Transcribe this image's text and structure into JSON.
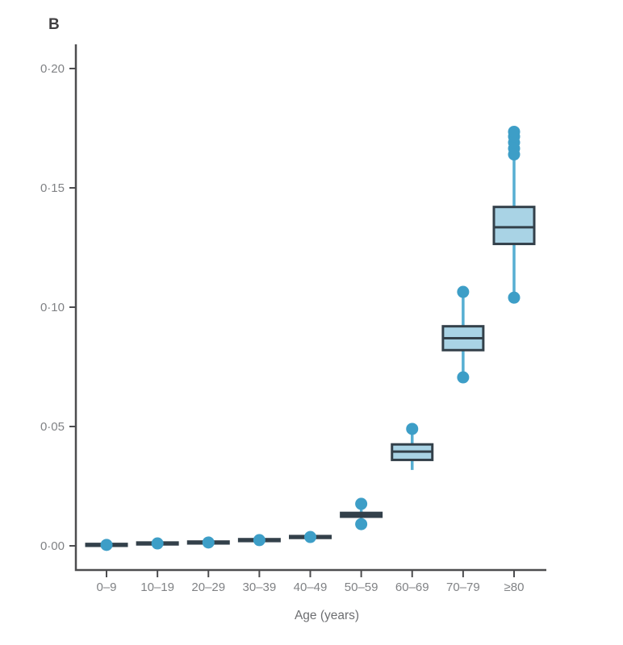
{
  "panel_label": "B",
  "chart_data": {
    "type": "box",
    "title": "",
    "xlabel": "Age (years)",
    "ylabel": "",
    "ylim": [
      0,
      0.21
    ],
    "grid": false,
    "legend": null,
    "categories": [
      "0–9",
      "10–19",
      "20–29",
      "30–39",
      "40–49",
      "50–59",
      "60–69",
      "70–79",
      "≥80"
    ],
    "yticks": [
      {
        "value": 0.0,
        "label": "0·00"
      },
      {
        "value": 0.05,
        "label": "0·05"
      },
      {
        "value": 0.1,
        "label": "0·10"
      },
      {
        "value": 0.15,
        "label": "0·15"
      },
      {
        "value": 0.2,
        "label": "0·20"
      }
    ],
    "groups": [
      {
        "category": "0–9",
        "q1": 0.0,
        "median": 0.0004,
        "q3": 0.0008,
        "whisker_low": 0.0,
        "whisker_high": 0.0008,
        "outliers": [
          0.0004
        ]
      },
      {
        "category": "10–19",
        "q1": 0.0006,
        "median": 0.001,
        "q3": 0.0014,
        "whisker_low": 0.0006,
        "whisker_high": 0.0014,
        "outliers": [
          0.001
        ]
      },
      {
        "category": "20–29",
        "q1": 0.001,
        "median": 0.0014,
        "q3": 0.0018,
        "whisker_low": 0.001,
        "whisker_high": 0.0018,
        "outliers": [
          0.0014
        ]
      },
      {
        "category": "30–39",
        "q1": 0.002,
        "median": 0.0024,
        "q3": 0.0028,
        "whisker_low": 0.002,
        "whisker_high": 0.0028,
        "outliers": [
          0.0024
        ]
      },
      {
        "category": "40–49",
        "q1": 0.0033,
        "median": 0.0037,
        "q3": 0.0041,
        "whisker_low": 0.0033,
        "whisker_high": 0.0041,
        "outliers": [
          0.0037
        ]
      },
      {
        "category": "50–59",
        "q1": 0.0122,
        "median": 0.013,
        "q3": 0.0138,
        "whisker_low": 0.0091,
        "whisker_high": 0.0176,
        "outliers": [
          0.0176,
          0.0091
        ]
      },
      {
        "category": "60–69",
        "q1": 0.036,
        "median": 0.0395,
        "q3": 0.0425,
        "whisker_low": 0.0318,
        "whisker_high": 0.049,
        "outliers": [
          0.049
        ]
      },
      {
        "category": "70–79",
        "q1": 0.082,
        "median": 0.087,
        "q3": 0.092,
        "whisker_low": 0.0706,
        "whisker_high": 0.1064,
        "outliers": [
          0.1064,
          0.0706
        ]
      },
      {
        "category": "≥80",
        "q1": 0.1265,
        "median": 0.1335,
        "q3": 0.142,
        "whisker_low": 0.104,
        "whisker_high": 0.1735,
        "outliers": [
          0.104,
          0.164,
          0.1665,
          0.169,
          0.1715,
          0.1735
        ]
      }
    ],
    "colors": {
      "box_fill": "#a9d3e5",
      "box_border": "#33404a",
      "median": "#33404a",
      "whisker": "#56aed2",
      "dot": "#3d9ec7",
      "axis": "#4d4d4f",
      "tick_label": "#808285",
      "axis_title": "#6d6e71",
      "panel_label": "#414042"
    }
  }
}
